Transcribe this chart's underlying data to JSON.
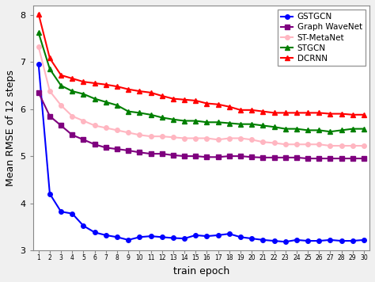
{
  "epochs": [
    0,
    1,
    2,
    3,
    4,
    5,
    6,
    7,
    8,
    9,
    10,
    11,
    12,
    13,
    14,
    15,
    16,
    17,
    18,
    19,
    20,
    21,
    22,
    23,
    24,
    25,
    26,
    27,
    28,
    29
  ],
  "tick_labels": [
    "1",
    "2",
    "3",
    "4",
    "5",
    "6",
    "7",
    "8",
    "9",
    "10",
    "11",
    "12",
    "13",
    "14",
    "15",
    "16",
    "17",
    "18",
    "19",
    "20",
    "21",
    "22",
    "23",
    "24",
    "25",
    "26",
    "27",
    "28",
    "29",
    "30"
  ],
  "GSTGCN": [
    6.95,
    4.2,
    3.82,
    3.78,
    3.52,
    3.38,
    3.32,
    3.28,
    3.22,
    3.28,
    3.3,
    3.28,
    3.26,
    3.25,
    3.32,
    3.3,
    3.32,
    3.35,
    3.28,
    3.25,
    3.22,
    3.2,
    3.18,
    3.22,
    3.2,
    3.2,
    3.22,
    3.2,
    3.2,
    3.22
  ],
  "GraphWaveNet": [
    6.35,
    5.85,
    5.65,
    5.45,
    5.35,
    5.25,
    5.18,
    5.15,
    5.12,
    5.08,
    5.05,
    5.05,
    5.02,
    5.0,
    5.0,
    4.98,
    4.98,
    5.0,
    5.0,
    4.98,
    4.97,
    4.97,
    4.97,
    4.97,
    4.95,
    4.95,
    4.95,
    4.95,
    4.95,
    4.95
  ],
  "STMetaNet": [
    7.32,
    6.38,
    6.08,
    5.85,
    5.75,
    5.65,
    5.6,
    5.55,
    5.5,
    5.45,
    5.42,
    5.42,
    5.4,
    5.38,
    5.38,
    5.38,
    5.35,
    5.38,
    5.38,
    5.35,
    5.3,
    5.28,
    5.25,
    5.25,
    5.25,
    5.25,
    5.22,
    5.22,
    5.22,
    5.22
  ],
  "STGCN": [
    7.62,
    6.85,
    6.5,
    6.38,
    6.32,
    6.22,
    6.15,
    6.08,
    5.95,
    5.92,
    5.88,
    5.82,
    5.78,
    5.75,
    5.75,
    5.72,
    5.72,
    5.7,
    5.68,
    5.68,
    5.65,
    5.62,
    5.58,
    5.58,
    5.55,
    5.55,
    5.52,
    5.55,
    5.58,
    5.58
  ],
  "DCRNN": [
    8.02,
    7.08,
    6.72,
    6.65,
    6.58,
    6.55,
    6.52,
    6.48,
    6.42,
    6.38,
    6.35,
    6.28,
    6.22,
    6.2,
    6.18,
    6.12,
    6.1,
    6.05,
    5.98,
    5.98,
    5.95,
    5.92,
    5.92,
    5.92,
    5.92,
    5.92,
    5.9,
    5.9,
    5.88,
    5.88
  ],
  "colors": {
    "GSTGCN": "#0000ff",
    "GraphWaveNet": "#7f007f",
    "STMetaNet": "#ffb6c1",
    "STGCN": "#007f00",
    "DCRNN": "#ff0000"
  },
  "markers": {
    "GSTGCN": "o",
    "GraphWaveNet": "s",
    "STMetaNet": "o",
    "STGCN": "^",
    "DCRNN": "^"
  },
  "xlabel": "train epoch",
  "ylabel": "Mean RMSE of 12 steps",
  "ylim": [
    3.0,
    8.2
  ],
  "xlim": [
    -0.5,
    29.5
  ],
  "figsize": [
    4.74,
    3.56
  ],
  "dpi": 100,
  "bg_color": "#f0f0f0",
  "plot_bg_color": "#ffffff"
}
